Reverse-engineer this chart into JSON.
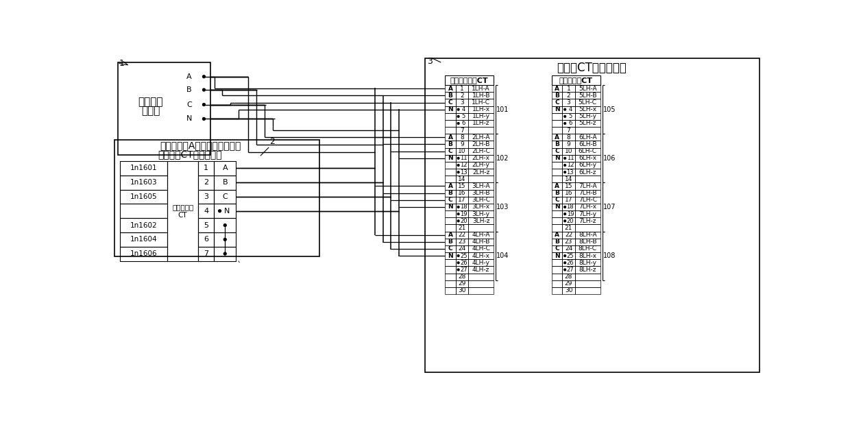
{
  "bg_color": "#ffffff",
  "neutral_rows": [
    [
      "A",
      "1",
      "1LH-A"
    ],
    [
      "B",
      "2",
      "1LH-B"
    ],
    [
      "C",
      "3",
      "1LH-C"
    ],
    [
      "N",
      "4",
      "1LH-x"
    ],
    [
      "",
      "5",
      "1LH-y"
    ],
    [
      "",
      "6",
      "1LH-z"
    ],
    [
      "",
      "7",
      ""
    ],
    [
      "A",
      "8",
      "2LH-A"
    ],
    [
      "B",
      "9",
      "2LH-B"
    ],
    [
      "C",
      "10",
      "2LH-C"
    ],
    [
      "N",
      "11",
      "2LH-x"
    ],
    [
      "",
      "12",
      "2LH-y"
    ],
    [
      "",
      "13",
      "2LH-z"
    ],
    [
      "",
      "14",
      ""
    ],
    [
      "A",
      "15",
      "3LH-A"
    ],
    [
      "B",
      "16",
      "3LH-B"
    ],
    [
      "C",
      "17",
      "3LH-C"
    ],
    [
      "N",
      "18",
      "3LH-x"
    ],
    [
      "",
      "19",
      "3LH-y"
    ],
    [
      "",
      "20",
      "3LH-z"
    ],
    [
      "",
      "21",
      ""
    ],
    [
      "A",
      "22",
      "4LH-A"
    ],
    [
      "B",
      "23",
      "4LH-B"
    ],
    [
      "C",
      "24",
      "4LH-C"
    ],
    [
      "N",
      "25",
      "4LH-x"
    ],
    [
      "",
      "26",
      "4LH-y"
    ],
    [
      "",
      "27",
      "4LH-z"
    ],
    [
      "",
      "28",
      ""
    ],
    [
      "",
      "29",
      ""
    ],
    [
      "",
      "30",
      ""
    ]
  ],
  "machine_rows": [
    [
      "A",
      "1",
      "5LH-A"
    ],
    [
      "B",
      "2",
      "5LH-B"
    ],
    [
      "C",
      "3",
      "5LH-C"
    ],
    [
      "N",
      "4",
      "5LH-x"
    ],
    [
      "",
      "5",
      "5LH-y"
    ],
    [
      "",
      "6",
      "5LH-z"
    ],
    [
      "",
      "7",
      ""
    ],
    [
      "A",
      "8",
      "6LH-A"
    ],
    [
      "B",
      "9",
      "6LH-B"
    ],
    [
      "C",
      "10",
      "6LH-C"
    ],
    [
      "N",
      "11",
      "6LH-x"
    ],
    [
      "",
      "12",
      "6LH-y"
    ],
    [
      "",
      "13",
      "6LH-z"
    ],
    [
      "",
      "14",
      ""
    ],
    [
      "A",
      "15",
      "7LH-A"
    ],
    [
      "B",
      "16",
      "7LH-B"
    ],
    [
      "C",
      "17",
      "7LH-C"
    ],
    [
      "N",
      "18",
      "7LH-x"
    ],
    [
      "",
      "19",
      "7LH-y"
    ],
    [
      "",
      "20",
      "7LH-z"
    ],
    [
      "",
      "21",
      ""
    ],
    [
      "A",
      "22",
      "8LH-A"
    ],
    [
      "B",
      "23",
      "8LH-B"
    ],
    [
      "C",
      "24",
      "8LH-C"
    ],
    [
      "N",
      "25",
      "8LH-x"
    ],
    [
      "",
      "26",
      "8LH-y"
    ],
    [
      "",
      "27",
      "8LH-z"
    ],
    [
      "",
      "28",
      ""
    ],
    [
      "",
      "29",
      ""
    ],
    [
      "",
      "30",
      ""
    ]
  ],
  "neutral_dot_rows": [
    3,
    4,
    5,
    10,
    11,
    12,
    17,
    18,
    19,
    24,
    25,
    26
  ],
  "machine_dot_rows": [
    3,
    4,
    5,
    10,
    11,
    12,
    17,
    18,
    19,
    24,
    25,
    26
  ],
  "left_names": [
    "1n1601",
    "1n1603",
    "1n1605",
    "",
    "1n1602",
    "1n1604",
    "1n1606"
  ]
}
